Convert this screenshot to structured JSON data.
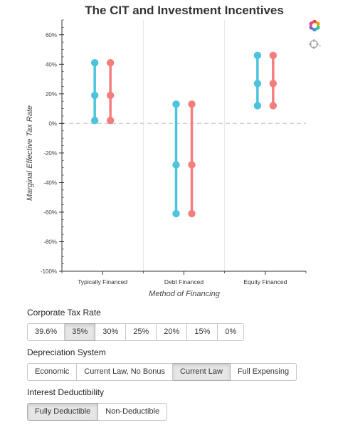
{
  "chart_data": {
    "type": "scatter",
    "title": "The CIT and Investment Incentives",
    "xlabel": "Method of Financing",
    "ylabel": "Marginal Effective Tax Rate",
    "categories": [
      "Typically Financed",
      "Debt Financed",
      "Equity Financed"
    ],
    "ylim": [
      -100,
      70
    ],
    "yticks": [
      "60%",
      "40%",
      "20%",
      "0%",
      "-20%",
      "-40%",
      "-60%",
      "-80%",
      "-100%"
    ],
    "grid": "vertical category separators",
    "reference_line": {
      "y": 0,
      "style": "dashed"
    },
    "series": [
      {
        "color": "#4dc3de",
        "values": [
          [
            2,
            19,
            41
          ],
          [
            -61,
            -28,
            13
          ],
          [
            12,
            27,
            46
          ]
        ]
      },
      {
        "color": "#f47e7e",
        "values": [
          [
            2,
            19,
            41
          ],
          [
            -61,
            -28,
            13
          ],
          [
            12,
            27,
            46
          ]
        ]
      }
    ]
  },
  "toolbar": {
    "icons": [
      "bokeh-logo-icon",
      "crosshair-tool-icon"
    ]
  },
  "controls": [
    {
      "label": "Corporate Tax Rate",
      "options": [
        "39.6%",
        "35%",
        "30%",
        "25%",
        "20%",
        "15%",
        "0%"
      ],
      "selected": "35%"
    },
    {
      "label": "Depreciation System",
      "options": [
        "Economic",
        "Current Law, No Bonus",
        "Current Law",
        "Full Expensing"
      ],
      "selected": "Current Law"
    },
    {
      "label": "Interest Deductibility",
      "options": [
        "Fully Deductible",
        "Non-Deductible"
      ],
      "selected": "Fully Deductible"
    }
  ]
}
